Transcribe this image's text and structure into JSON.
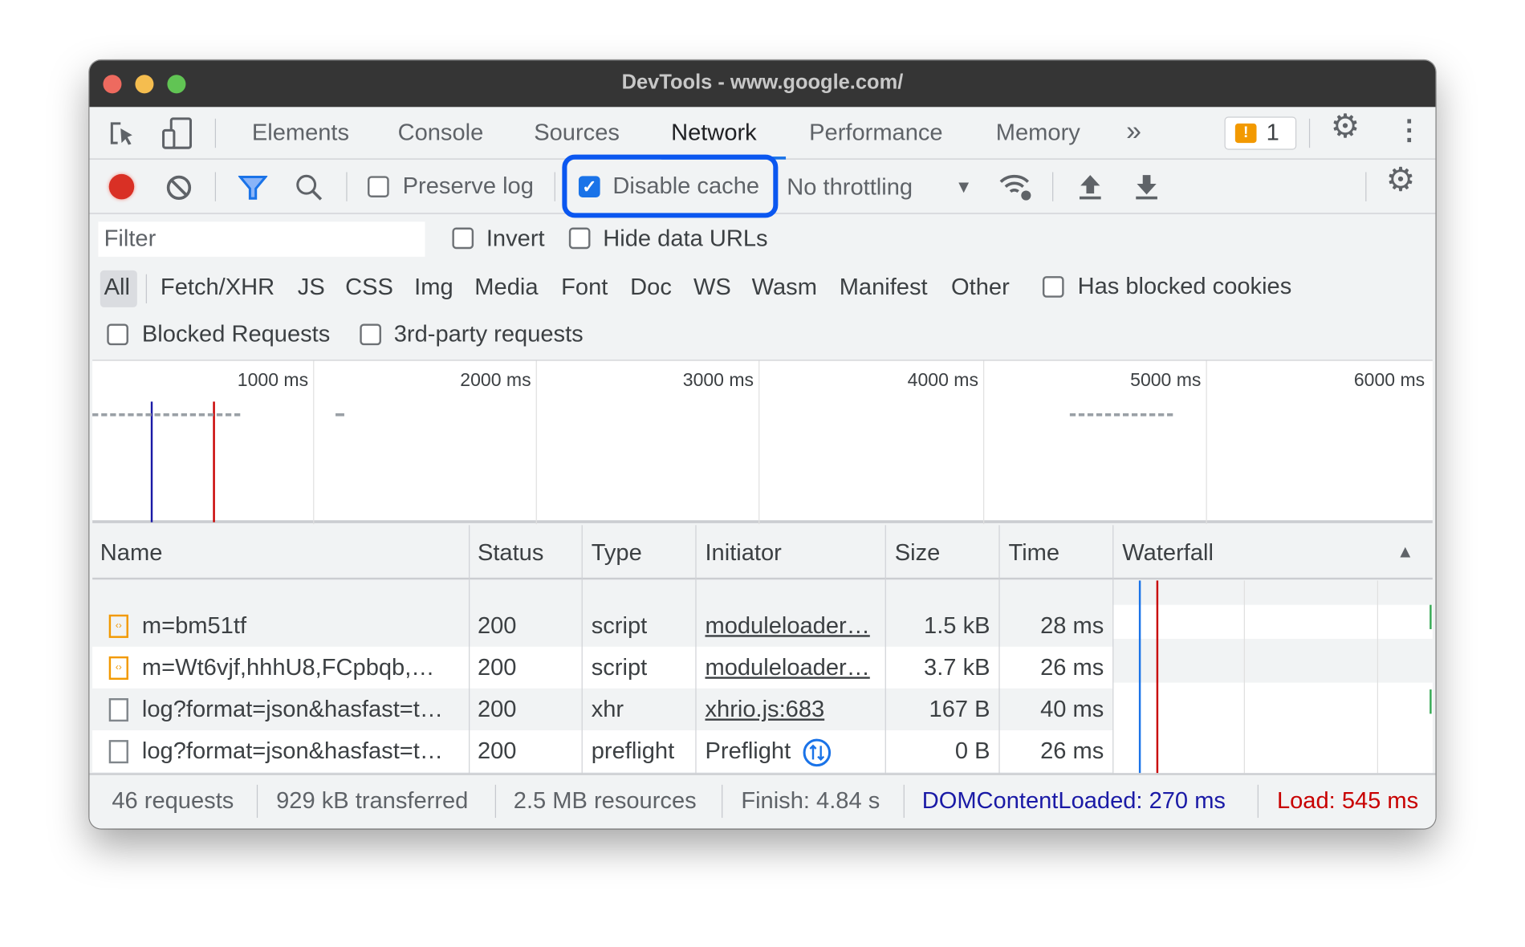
{
  "window": {
    "title": "DevTools - www.google.com/"
  },
  "tabs": {
    "items": [
      "Elements",
      "Console",
      "Sources",
      "Network",
      "Performance",
      "Memory"
    ],
    "active": "Network",
    "more": "»",
    "issues_count": "1"
  },
  "toolbar": {
    "preserve_log": "Preserve log",
    "preserve_log_checked": false,
    "disable_cache": "Disable cache",
    "disable_cache_checked": true,
    "throttling": "No throttling"
  },
  "filter": {
    "placeholder": "Filter",
    "invert": "Invert",
    "hide_data_urls": "Hide data URLs"
  },
  "types": [
    "All",
    "Fetch/XHR",
    "JS",
    "CSS",
    "Img",
    "Media",
    "Font",
    "Doc",
    "WS",
    "Wasm",
    "Manifest",
    "Other"
  ],
  "has_blocked_cookies": "Has blocked cookies",
  "blocked_requests": "Blocked Requests",
  "third_party": "3rd-party requests",
  "overview": {
    "ticks": [
      "1000 ms",
      "2000 ms",
      "3000 ms",
      "4000 ms",
      "5000 ms",
      "6000 ms"
    ]
  },
  "columns": [
    "Name",
    "Status",
    "Type",
    "Initiator",
    "Size",
    "Time",
    "Waterfall"
  ],
  "rows": [
    {
      "name": "m=bm51tf",
      "status": "200",
      "type": "script",
      "initiator": "moduleloader…",
      "size": "1.5 kB",
      "time": "28 ms",
      "icon": "script-file-icon"
    },
    {
      "name": "m=Wt6vjf,hhhU8,FCpbqb,…",
      "status": "200",
      "type": "script",
      "initiator": "moduleloader…",
      "size": "3.7 kB",
      "time": "26 ms",
      "icon": "script-file-icon"
    },
    {
      "name": "log?format=json&hasfast=t…",
      "status": "200",
      "type": "xhr",
      "initiator": "xhrio.js:683",
      "size": "167 B",
      "time": "40 ms",
      "icon": "document-file-icon"
    },
    {
      "name": "log?format=json&hasfast=t…",
      "status": "200",
      "type": "preflight",
      "initiator": "Preflight",
      "size": "0 B",
      "time": "26 ms",
      "icon": "document-file-icon"
    }
  ],
  "status": {
    "requests": "46 requests",
    "transferred": "929 kB transferred",
    "resources": "2.5 MB resources",
    "finish": "Finish: 4.84 s",
    "dcl": "DOMContentLoaded: 270 ms",
    "load": "Load: 545 ms"
  },
  "colors": {
    "accent": "#1a73e8",
    "highlight": "#0b57f0",
    "dcl": "#1a1aa6",
    "load": "#c80000"
  }
}
